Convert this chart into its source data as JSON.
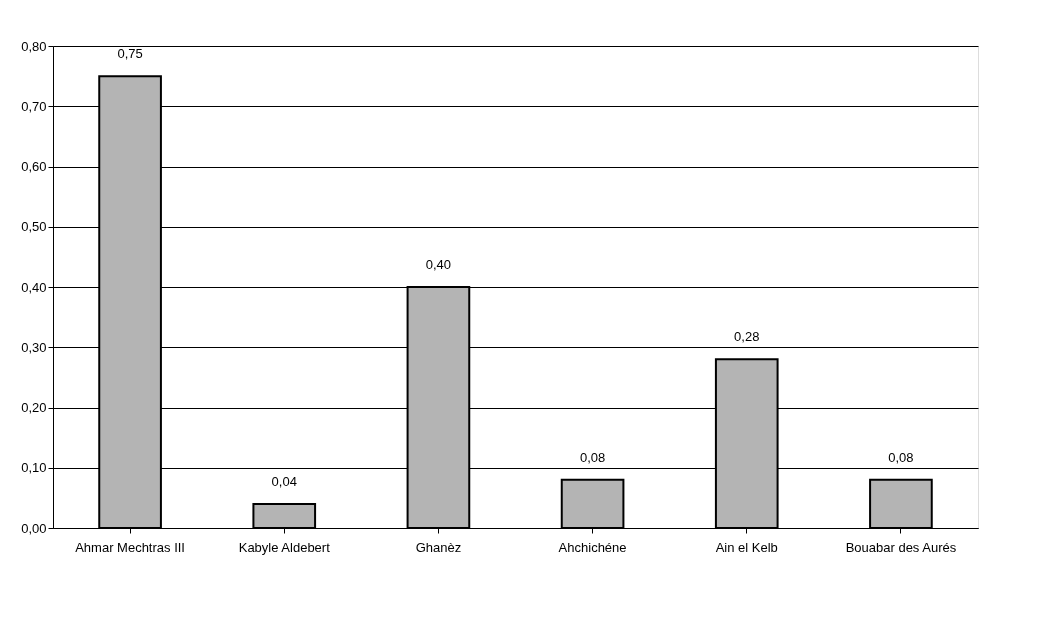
{
  "chart_data": {
    "type": "bar",
    "categories": [
      "Ahmar Mechtras III",
      "Kabyle Aldebert",
      "Ghanèz",
      "Ahchichéne",
      "Ain el Kelb",
      "Bouabar des Aurés"
    ],
    "values": [
      0.75,
      0.04,
      0.4,
      0.08,
      0.28,
      0.08
    ],
    "value_labels": [
      "0,75",
      "0,04",
      "0,40",
      "0,08",
      "0,28",
      "0,08"
    ],
    "color": "#b4b4b4",
    "ylim": [
      0,
      0.8
    ],
    "yticks": [
      {
        "value": 0,
        "label": "0,00"
      },
      {
        "value": 0.1,
        "label": "0,10"
      },
      {
        "value": 0.2,
        "label": "0,20"
      },
      {
        "value": 0.3,
        "label": "0,30"
      },
      {
        "value": 0.4,
        "label": "0,40"
      },
      {
        "value": 0.5,
        "label": "0,50"
      },
      {
        "value": 0.6,
        "label": "0,60"
      },
      {
        "value": 0.7,
        "label": "0,70"
      },
      {
        "value": 0.8,
        "label": "0,80"
      }
    ],
    "grid": "y"
  }
}
